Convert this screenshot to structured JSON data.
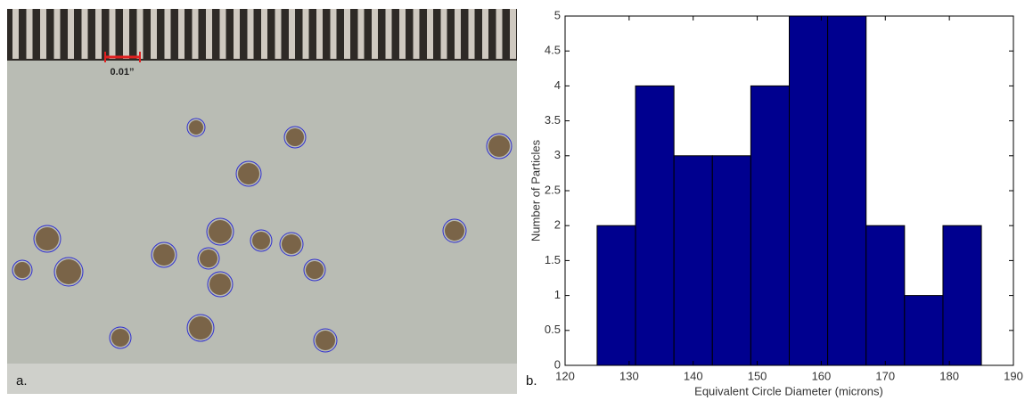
{
  "image_panel": {
    "scale_label": "0.01”",
    "panel_label": "a."
  },
  "chart_data": {
    "type": "histogram",
    "panel_label": "b.",
    "xlabel": "Equivalent Circle Diameter (microns)",
    "ylabel": "Number of Particles",
    "bins": [
      125,
      131,
      137,
      143,
      149,
      155,
      161,
      167,
      173,
      179,
      185
    ],
    "values": [
      2,
      4,
      3,
      3,
      4,
      5,
      5,
      2,
      1,
      2
    ],
    "color": "#00008f",
    "xlim": [
      120,
      190
    ],
    "xticks": [
      120,
      130,
      140,
      150,
      160,
      170,
      180,
      190
    ],
    "ylim": [
      0,
      5
    ],
    "yticks": [
      0,
      0.5,
      1,
      1.5,
      2,
      2.5,
      3,
      3.5,
      4,
      4.5,
      5
    ],
    "grid": false
  }
}
